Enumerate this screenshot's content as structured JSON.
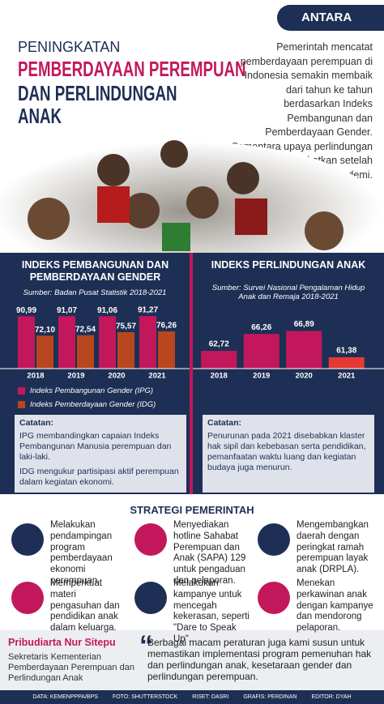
{
  "header": {
    "logo": "ANTARA",
    "title": [
      "PENINGKATAN",
      "PEMBERDAYAAN PEREMPUAN",
      "DAN PERLINDUNGAN",
      "ANAK"
    ],
    "intro": "Pemerintah mencatat pemberdayaan perempuan di Indonesia semakin membaik dari tahun ke tahun berdasarkan Indeks Pembangunan dan Pemberdayaan Gender. Sementara upaya perlindungan anak terus ditingkatkan setelah terdampak pandemi."
  },
  "chart_data": [
    {
      "type": "bar",
      "title": "INDEKS PEMBANGUNAN DAN PEMBERDAYAAN GENDER",
      "subtitle": "Sumber: Badan Pusat Statistik 2018-2021",
      "categories": [
        "2018",
        "2019",
        "2020",
        "2021"
      ],
      "ylim": [
        40,
        100
      ],
      "series": [
        {
          "name": "Indeks Pembangunan Gender (IPG)",
          "color": "#c2185b",
          "values": [
            90.99,
            91.07,
            91.06,
            91.27
          ],
          "value_labels": [
            "90,99",
            "91,07",
            "91,06",
            "91,27"
          ]
        },
        {
          "name": "Indeks Pemberdayaan Gender (IDG)",
          "color": "#b8461f",
          "values": [
            72.1,
            72.54,
            75.57,
            76.26
          ],
          "value_labels": [
            "72,10",
            "72,54",
            "75,57",
            "76,26"
          ]
        }
      ]
    },
    {
      "type": "bar",
      "title": "INDEKS PERLINDUNGAN ANAK",
      "subtitle": "Sumber: Survei Nasional Pengalaman Hidup Anak dan Remaja 2018-2021",
      "categories": [
        "2018",
        "2019",
        "2020",
        "2021"
      ],
      "ylim": [
        59,
        68
      ],
      "values": [
        62.72,
        66.26,
        66.89,
        61.38
      ],
      "value_labels": [
        "62,72",
        "66,26",
        "66,89",
        "61,38"
      ],
      "colors": [
        "#c2185b",
        "#c2185b",
        "#c2185b",
        "#e53935"
      ]
    }
  ],
  "notes": {
    "left": {
      "heading": "Catatan:",
      "items": [
        "IPG membandingkan capaian Indeks Pembangunan Manusia perempuan dan laki-laki.",
        "IDG mengukur partisipasi aktif perempuan dalam kegiatan ekonomi."
      ]
    },
    "right": {
      "heading": "Catatan:",
      "items": [
        "Penurunan pada 2021 disebabkan klaster hak sipil dan kebebasan serta pendidikan, pemanfaatan waktu luang dan kegiatan budaya juga menurun."
      ]
    }
  },
  "strategy": {
    "title": "STRATEGI PEMERINTAH",
    "items": [
      "Melakukan pendampingan program pemberdayaan ekonomi perempuan.",
      "Menyediakan hotline Sahabat Perempuan dan Anak (SAPA) 129 untuk pengaduan dan pelaporan.",
      "Mengembangkan daerah dengan peringkat ramah perempuan layak anak (DRPLA).",
      "Memperkuat materi pengasuhan dan pendidikan anak dalam keluarga.",
      "Melakukan kampanye untuk mencegah kekerasan, seperti \"Dare to Speak Up\".",
      "Menekan perkawinan anak dengan kampanye dan mendorong pelaporan."
    ]
  },
  "quote": {
    "name": "Pribudiarta Nur Sitepu",
    "role": "Sekretaris Kementerian Pemberdayaan Perempuan dan Perlindungan Anak",
    "mark": "“",
    "text": "Berbagai macam peraturan juga kami susun untuk memastikan implementasi program pemenuhan hak dan perlindungan anak, kesetaraan gender dan perlindungan perempuan."
  },
  "footer": [
    "DATA: KEMENPPPA/BPS",
    "FOTO: SHUTTERSTOCK",
    "RISET: DASRI",
    "GRAFIS: PERDINAN",
    "EDITOR: DYAH"
  ]
}
